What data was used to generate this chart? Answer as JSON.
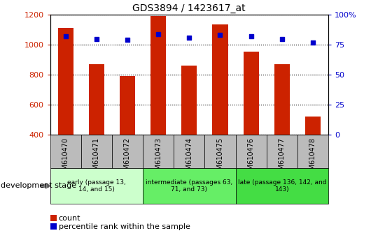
{
  "title": "GDS3894 / 1423617_at",
  "samples": [
    "GSM610470",
    "GSM610471",
    "GSM610472",
    "GSM610473",
    "GSM610474",
    "GSM610475",
    "GSM610476",
    "GSM610477",
    "GSM610478"
  ],
  "counts": [
    1113,
    869,
    790,
    1192,
    862,
    1134,
    952,
    869,
    522
  ],
  "percentiles": [
    82,
    80,
    79,
    84,
    81,
    83,
    82,
    80,
    77
  ],
  "ylim_left": [
    400,
    1200
  ],
  "ylim_right": [
    0,
    100
  ],
  "yticks_left": [
    400,
    600,
    800,
    1000,
    1200
  ],
  "yticks_right": [
    0,
    25,
    50,
    75,
    100
  ],
  "ytick_right_labels": [
    "0",
    "25",
    "50",
    "75",
    "100%"
  ],
  "groups": [
    {
      "label": "early (passage 13,\n14, and 15)",
      "start": 0,
      "end": 3,
      "color": "#ccffcc"
    },
    {
      "label": "intermediate (passages 63,\n71, and 73)",
      "start": 3,
      "end": 6,
      "color": "#66ee66"
    },
    {
      "label": "late (passage 136, 142, and\n143)",
      "start": 6,
      "end": 9,
      "color": "#44dd44"
    }
  ],
  "bar_color": "#cc2200",
  "dot_color": "#0000cc",
  "bar_width": 0.5,
  "tick_color_left": "#cc2200",
  "tick_color_right": "#0000cc",
  "sample_box_color": "#bbbbbb",
  "legend_count_label": "count",
  "legend_pct_label": "percentile rank within the sample",
  "dev_stage_label": "development stage"
}
